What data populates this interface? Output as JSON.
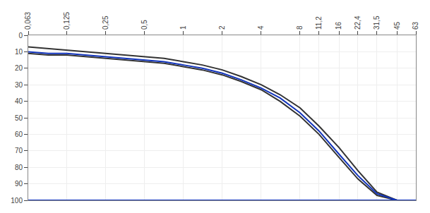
{
  "chart_data": {
    "type": "line",
    "log": "x",
    "grid": true,
    "x": [
      0.063,
      0.09,
      0.125,
      0.18,
      0.25,
      0.355,
      0.5,
      0.71,
      1.0,
      1.4,
      2.0,
      2.8,
      4.0,
      5.6,
      8.0,
      11.2,
      16.0,
      22.4,
      31.5,
      45.0,
      63.0
    ],
    "xlim": [
      0.063,
      63
    ],
    "xticks": [
      {
        "value": 0.063,
        "label": "0,063"
      },
      {
        "value": 0.125,
        "label": "0,125"
      },
      {
        "value": 0.25,
        "label": "0,25"
      },
      {
        "value": 0.5,
        "label": "0,5"
      },
      1,
      2,
      4,
      8,
      {
        "value": 11.2,
        "label": "11,2"
      },
      16,
      {
        "value": 22.4,
        "label": "22,4"
      },
      {
        "value": 31.5,
        "label": "31,5"
      },
      45,
      63
    ],
    "ylim": [
      100,
      0
    ],
    "yticks": [
      0,
      10,
      20,
      30,
      40,
      50,
      60,
      70,
      80,
      90,
      100
    ],
    "series": [
      {
        "color": "#333333",
        "values": [
          7,
          8,
          9,
          10,
          11,
          12,
          13,
          14,
          16,
          18,
          21,
          25,
          30,
          36,
          44,
          55,
          68,
          82,
          95,
          100,
          100
        ]
      },
      {
        "color": "#333333",
        "values": [
          11,
          12,
          12,
          13,
          14,
          15,
          16,
          17,
          19,
          21,
          24,
          28,
          33,
          40,
          49,
          60,
          74,
          87,
          97,
          100,
          100
        ]
      },
      {
        "color": "#1133bb",
        "values": [
          10,
          11,
          11,
          12,
          13,
          14,
          15,
          16,
          18,
          20,
          23,
          27,
          32,
          38,
          47,
          58,
          72,
          85,
          96,
          100,
          100
        ]
      },
      {
        "color": "#1133bb",
        "values": [
          100,
          100,
          100,
          100,
          100,
          100,
          100,
          100,
          100,
          100,
          100,
          100,
          100,
          100,
          100,
          100,
          100,
          100,
          100,
          100,
          100
        ]
      }
    ]
  }
}
